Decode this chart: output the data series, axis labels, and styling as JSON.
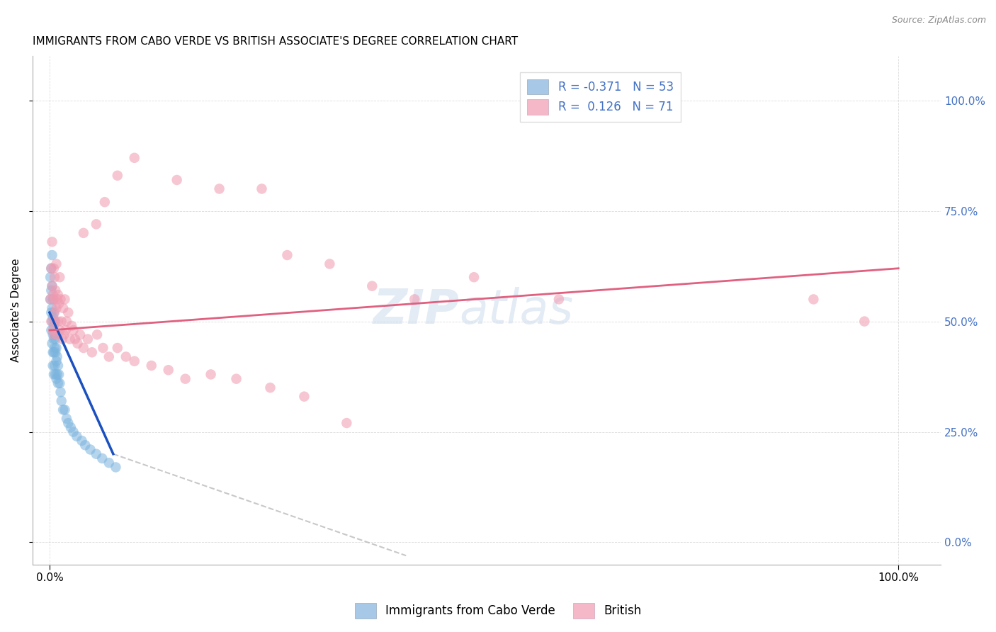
{
  "title": "IMMIGRANTS FROM CABO VERDE VS BRITISH ASSOCIATE'S DEGREE CORRELATION CHART",
  "source": "Source: ZipAtlas.com",
  "ylabel": "Associate's Degree",
  "right_ytick_labels": [
    "0.0%",
    "25.0%",
    "50.0%",
    "75.0%",
    "100.0%"
  ],
  "right_ytick_values": [
    0.0,
    0.25,
    0.5,
    0.75,
    1.0
  ],
  "xtick_labels": [
    "0.0%",
    "100.0%"
  ],
  "xtick_values": [
    0.0,
    1.0
  ],
  "xlim": [
    -0.02,
    1.05
  ],
  "ylim": [
    -0.05,
    1.1
  ],
  "watermark_text": "ZIP",
  "watermark_text2": "atlas",
  "background_color": "#ffffff",
  "grid_color": "#cccccc",
  "blue_dot_color": "#7ab4de",
  "pink_dot_color": "#f09ab0",
  "blue_line_color": "#1a50c0",
  "pink_line_color": "#e06080",
  "dashed_line_color": "#bbbbbb",
  "right_axis_color": "#4472c4",
  "legend_box_blue": "#a8c8e8",
  "legend_box_pink": "#f4b8c8",
  "blue_scatter_x": [
    0.001,
    0.001,
    0.002,
    0.002,
    0.002,
    0.002,
    0.003,
    0.003,
    0.003,
    0.003,
    0.003,
    0.004,
    0.004,
    0.004,
    0.004,
    0.004,
    0.005,
    0.005,
    0.005,
    0.005,
    0.005,
    0.006,
    0.006,
    0.006,
    0.006,
    0.007,
    0.007,
    0.007,
    0.008,
    0.008,
    0.008,
    0.009,
    0.009,
    0.01,
    0.01,
    0.011,
    0.012,
    0.013,
    0.014,
    0.016,
    0.018,
    0.02,
    0.022,
    0.025,
    0.028,
    0.032,
    0.038,
    0.042,
    0.048,
    0.055,
    0.062,
    0.07,
    0.078
  ],
  "blue_scatter_y": [
    0.6,
    0.55,
    0.62,
    0.57,
    0.52,
    0.48,
    0.65,
    0.58,
    0.53,
    0.5,
    0.45,
    0.55,
    0.51,
    0.47,
    0.43,
    0.4,
    0.52,
    0.49,
    0.46,
    0.43,
    0.38,
    0.5,
    0.47,
    0.44,
    0.4,
    0.46,
    0.43,
    0.38,
    0.44,
    0.41,
    0.37,
    0.42,
    0.38,
    0.4,
    0.36,
    0.38,
    0.36,
    0.34,
    0.32,
    0.3,
    0.3,
    0.28,
    0.27,
    0.26,
    0.25,
    0.24,
    0.23,
    0.22,
    0.21,
    0.2,
    0.19,
    0.18,
    0.17
  ],
  "pink_scatter_x": [
    0.001,
    0.002,
    0.002,
    0.003,
    0.003,
    0.004,
    0.004,
    0.005,
    0.005,
    0.005,
    0.006,
    0.006,
    0.007,
    0.007,
    0.008,
    0.008,
    0.009,
    0.009,
    0.01,
    0.01,
    0.011,
    0.012,
    0.012,
    0.013,
    0.014,
    0.015,
    0.016,
    0.017,
    0.018,
    0.019,
    0.02,
    0.022,
    0.024,
    0.026,
    0.028,
    0.03,
    0.033,
    0.036,
    0.04,
    0.045,
    0.05,
    0.056,
    0.063,
    0.07,
    0.08,
    0.09,
    0.1,
    0.12,
    0.14,
    0.16,
    0.19,
    0.22,
    0.26,
    0.3,
    0.35,
    0.04,
    0.055,
    0.065,
    0.08,
    0.1,
    0.15,
    0.2,
    0.25,
    0.28,
    0.33,
    0.38,
    0.43,
    0.5,
    0.6,
    0.9,
    0.96
  ],
  "pink_scatter_y": [
    0.55,
    0.62,
    0.5,
    0.68,
    0.58,
    0.56,
    0.48,
    0.62,
    0.55,
    0.47,
    0.6,
    0.52,
    0.57,
    0.5,
    0.63,
    0.53,
    0.55,
    0.47,
    0.56,
    0.5,
    0.54,
    0.6,
    0.48,
    0.55,
    0.5,
    0.46,
    0.53,
    0.47,
    0.55,
    0.48,
    0.5,
    0.52,
    0.46,
    0.49,
    0.48,
    0.46,
    0.45,
    0.47,
    0.44,
    0.46,
    0.43,
    0.47,
    0.44,
    0.42,
    0.44,
    0.42,
    0.41,
    0.4,
    0.39,
    0.37,
    0.38,
    0.37,
    0.35,
    0.33,
    0.27,
    0.7,
    0.72,
    0.77,
    0.83,
    0.87,
    0.82,
    0.8,
    0.8,
    0.65,
    0.63,
    0.58,
    0.55,
    0.6,
    0.55,
    0.55,
    0.5
  ],
  "blue_trend_x": [
    0.0,
    0.075
  ],
  "blue_trend_y": [
    0.52,
    0.2
  ],
  "dashed_trend_x": [
    0.075,
    0.42
  ],
  "dashed_trend_y": [
    0.2,
    -0.03
  ],
  "pink_trend_x": [
    0.0,
    1.0
  ],
  "pink_trend_y": [
    0.48,
    0.62
  ],
  "title_fontsize": 11,
  "axis_label_fontsize": 11,
  "tick_fontsize": 11,
  "dot_size": 110,
  "dot_alpha": 0.55
}
